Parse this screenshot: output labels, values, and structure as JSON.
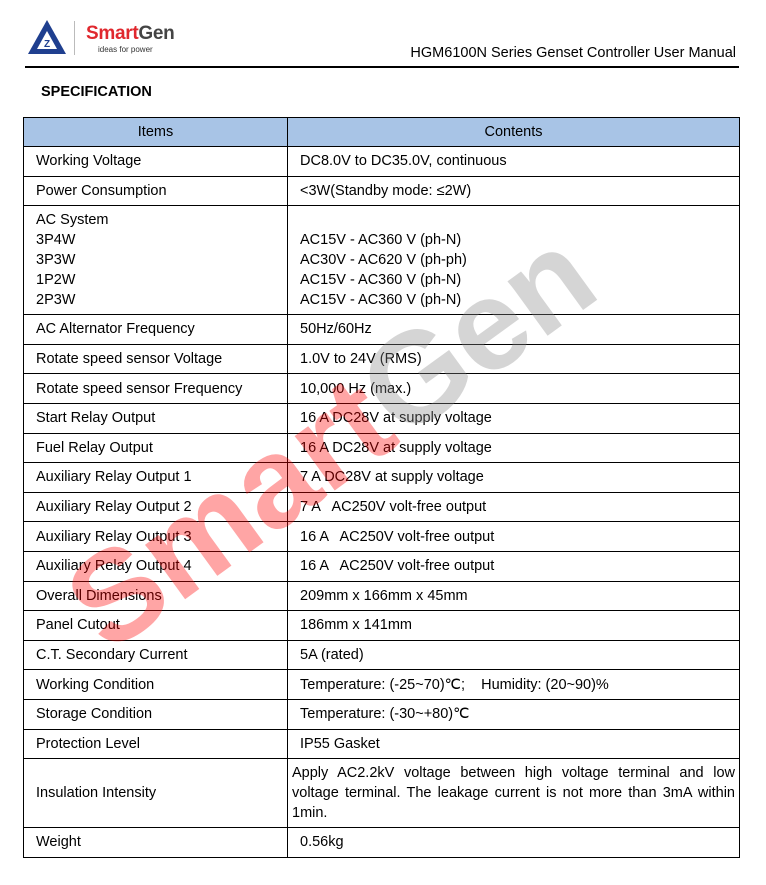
{
  "header": {
    "brand_smart": "Smart",
    "brand_gen": "Gen",
    "tagline": "ideas for power",
    "title": "HGM6100N Series Genset Controller User Manual"
  },
  "section_title": "SPECIFICATION",
  "table": {
    "headers": [
      "Items",
      "Contents"
    ],
    "rows": [
      {
        "item": [
          "Working Voltage"
        ],
        "content": [
          "DC8.0V to DC35.0V, continuous"
        ]
      },
      {
        "item": [
          "Power Consumption"
        ],
        "content": [
          "<3W(Standby mode: ≤2W)"
        ]
      },
      {
        "item": [
          "AC System",
          "3P4W",
          "3P3W",
          "1P2W",
          "2P3W"
        ],
        "content": [
          "",
          "AC15V - AC360 V (ph-N)",
          "AC30V - AC620 V (ph-ph)",
          "AC15V - AC360 V (ph-N)",
          "AC15V - AC360 V (ph-N)"
        ]
      },
      {
        "item": [
          "AC Alternator Frequency"
        ],
        "content": [
          "50Hz/60Hz"
        ]
      },
      {
        "item": [
          "Rotate speed sensor Voltage"
        ],
        "content": [
          "1.0V to 24V (RMS)"
        ]
      },
      {
        "item": [
          "Rotate speed sensor Frequency"
        ],
        "content": [
          "10,000 Hz (max.)"
        ]
      },
      {
        "item": [
          "Start Relay Output"
        ],
        "content": [
          "16 A DC28V at supply voltage"
        ]
      },
      {
        "item": [
          "Fuel Relay Output"
        ],
        "content": [
          "16 A DC28V at supply voltage"
        ]
      },
      {
        "item": [
          "Auxiliary Relay Output 1"
        ],
        "content": [
          "7 A DC28V at supply voltage"
        ]
      },
      {
        "item": [
          "Auxiliary Relay Output 2"
        ],
        "content": [
          "7 A   AC250V volt-free output"
        ]
      },
      {
        "item": [
          "Auxiliary Relay Output 3"
        ],
        "content": [
          "16 A   AC250V volt-free output"
        ]
      },
      {
        "item": [
          "Auxiliary Relay Output 4"
        ],
        "content": [
          "16 A   AC250V volt-free output"
        ]
      },
      {
        "item": [
          "Overall Dimensions"
        ],
        "content": [
          "209mm x 166mm x 45mm"
        ]
      },
      {
        "item": [
          "Panel Cutout"
        ],
        "content": [
          "186mm x 141mm"
        ]
      },
      {
        "item": [
          "C.T. Secondary Current"
        ],
        "content": [
          "5A (rated)"
        ]
      },
      {
        "item": [
          "Working Condition"
        ],
        "content": [
          "Temperature: (-25~70)℃;    Humidity: (20~90)%"
        ]
      },
      {
        "item": [
          "Storage Condition"
        ],
        "content": [
          "Temperature: (-30~+80)℃"
        ]
      },
      {
        "item": [
          "Protection Level"
        ],
        "content": [
          "IP55 Gasket"
        ]
      },
      {
        "item": [
          "Insulation Intensity"
        ],
        "content": [
          "Apply AC2.2kV voltage between high voltage terminal and low voltage terminal. The leakage current is not more than 3mA within 1min."
        ]
      },
      {
        "item": [
          "Weight"
        ],
        "content": [
          "0.56kg"
        ]
      }
    ]
  },
  "watermark": {
    "smart": "Smart",
    "gen": "Gen"
  },
  "colors": {
    "header_fill": "#a8c4e6",
    "brand_red": "#e0282e"
  }
}
